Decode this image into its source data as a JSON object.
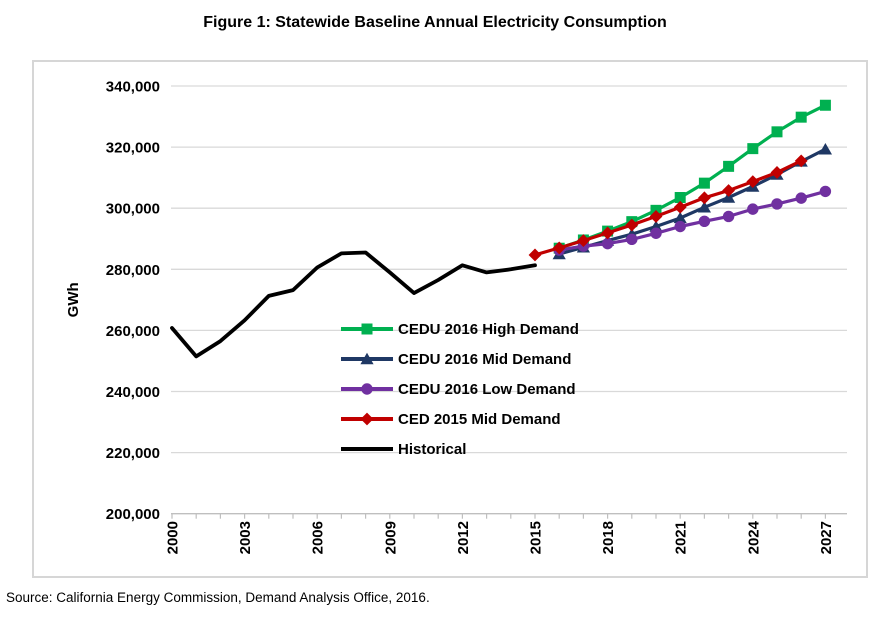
{
  "title": "Figure 1: Statewide Baseline Annual Electricity Consumption",
  "source": "Source: California Energy Commission, Demand Analysis Office, 2016.",
  "chart_data": {
    "type": "line",
    "title": "Figure 1: Statewide Baseline Annual Electricity Consumption",
    "xlabel": "",
    "ylabel": "GWh",
    "ylim": [
      200000,
      340000
    ],
    "ytick_step": 20000,
    "ytick_labels": [
      "200,000",
      "220,000",
      "240,000",
      "260,000",
      "280,000",
      "300,000",
      "320,000",
      "340,000"
    ],
    "xlim": [
      2000,
      2027
    ],
    "xticks_labeled": [
      2000,
      2003,
      2006,
      2009,
      2012,
      2015,
      2018,
      2021,
      2024,
      2027
    ],
    "xticks_minor_every": 1,
    "grid": "horizontal",
    "legend_position": "inside-center",
    "gridline_color": "#d9d9d9",
    "axis_color": "#bfbfbf",
    "series": [
      {
        "name": "CEDU 2016 High Demand",
        "color": "#00B050",
        "marker": "square",
        "x": [
          2016,
          2017,
          2018,
          2019,
          2020,
          2021,
          2022,
          2023,
          2024,
          2025,
          2026,
          2027
        ],
        "values": [
          286900,
          289600,
          292500,
          295600,
          299300,
          303500,
          308200,
          313700,
          319500,
          325000,
          329800,
          333700
        ]
      },
      {
        "name": "CEDU 2016 Mid Demand",
        "color": "#1F3864",
        "marker": "triangle",
        "x": [
          2016,
          2017,
          2018,
          2019,
          2020,
          2021,
          2022,
          2023,
          2024,
          2025,
          2026,
          2027
        ],
        "values": [
          285000,
          287200,
          289400,
          291500,
          294000,
          296800,
          300300,
          303500,
          307100,
          311000,
          315300,
          319300
        ]
      },
      {
        "name": "CEDU 2016 Low Demand",
        "color": "#7030A0",
        "marker": "circle",
        "x": [
          2016,
          2017,
          2018,
          2019,
          2020,
          2021,
          2022,
          2023,
          2024,
          2025,
          2026,
          2027
        ],
        "values": [
          286300,
          287600,
          288400,
          289800,
          291800,
          294000,
          295700,
          297300,
          299700,
          301400,
          303300,
          305500
        ]
      },
      {
        "name": "CED 2015 Mid Demand",
        "color": "#C00000",
        "marker": "diamond",
        "x": [
          2015,
          2016,
          2017,
          2018,
          2019,
          2020,
          2021,
          2022,
          2023,
          2024,
          2025,
          2026
        ],
        "values": [
          284700,
          287000,
          289400,
          291900,
          294500,
          297300,
          300300,
          303400,
          305800,
          308700,
          311700,
          315500
        ]
      },
      {
        "name": "Historical",
        "color": "#000000",
        "marker": "none",
        "x": [
          2000,
          2001,
          2002,
          2003,
          2004,
          2005,
          2006,
          2007,
          2008,
          2009,
          2010,
          2011,
          2012,
          2013,
          2014,
          2015
        ],
        "values": [
          260800,
          251500,
          256500,
          263300,
          271300,
          273200,
          280600,
          285200,
          285500,
          279000,
          272200,
          276500,
          281300,
          279000,
          280000,
          281300
        ]
      }
    ]
  }
}
